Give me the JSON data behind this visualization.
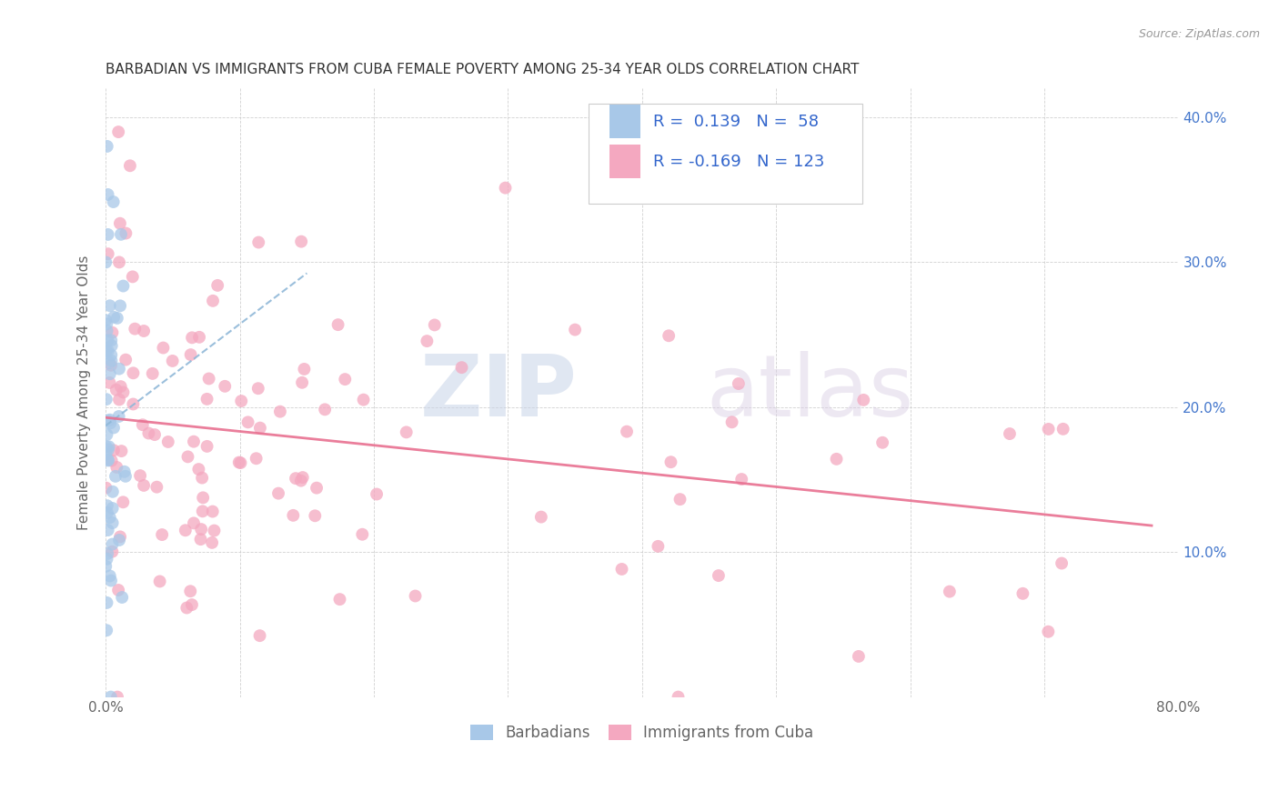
{
  "title": "BARBADIAN VS IMMIGRANTS FROM CUBA FEMALE POVERTY AMONG 25-34 YEAR OLDS CORRELATION CHART",
  "source": "Source: ZipAtlas.com",
  "ylabel": "Female Poverty Among 25-34 Year Olds",
  "xlim": [
    0.0,
    0.8
  ],
  "ylim": [
    0.0,
    0.42
  ],
  "xtick_vals": [
    0.0,
    0.1,
    0.2,
    0.3,
    0.4,
    0.5,
    0.6,
    0.7,
    0.8
  ],
  "xticklabels": [
    "0.0%",
    "",
    "",
    "",
    "",
    "",
    "",
    "",
    "80.0%"
  ],
  "ytick_vals": [
    0.0,
    0.1,
    0.2,
    0.3,
    0.4
  ],
  "yticklabels_right": [
    "",
    "10.0%",
    "20.0%",
    "30.0%",
    "40.0%"
  ],
  "r_barbadian": 0.139,
  "n_barbadian": 58,
  "r_cuba": -0.169,
  "n_cuba": 123,
  "color_barbadian": "#a8c8e8",
  "color_cuba": "#f4a8c0",
  "line_color_barbadian": "#90b8d8",
  "line_color_cuba": "#e87090",
  "watermark_zip": "ZIP",
  "watermark_atlas": "atlas",
  "background_color": "#ffffff",
  "seed": 12345
}
